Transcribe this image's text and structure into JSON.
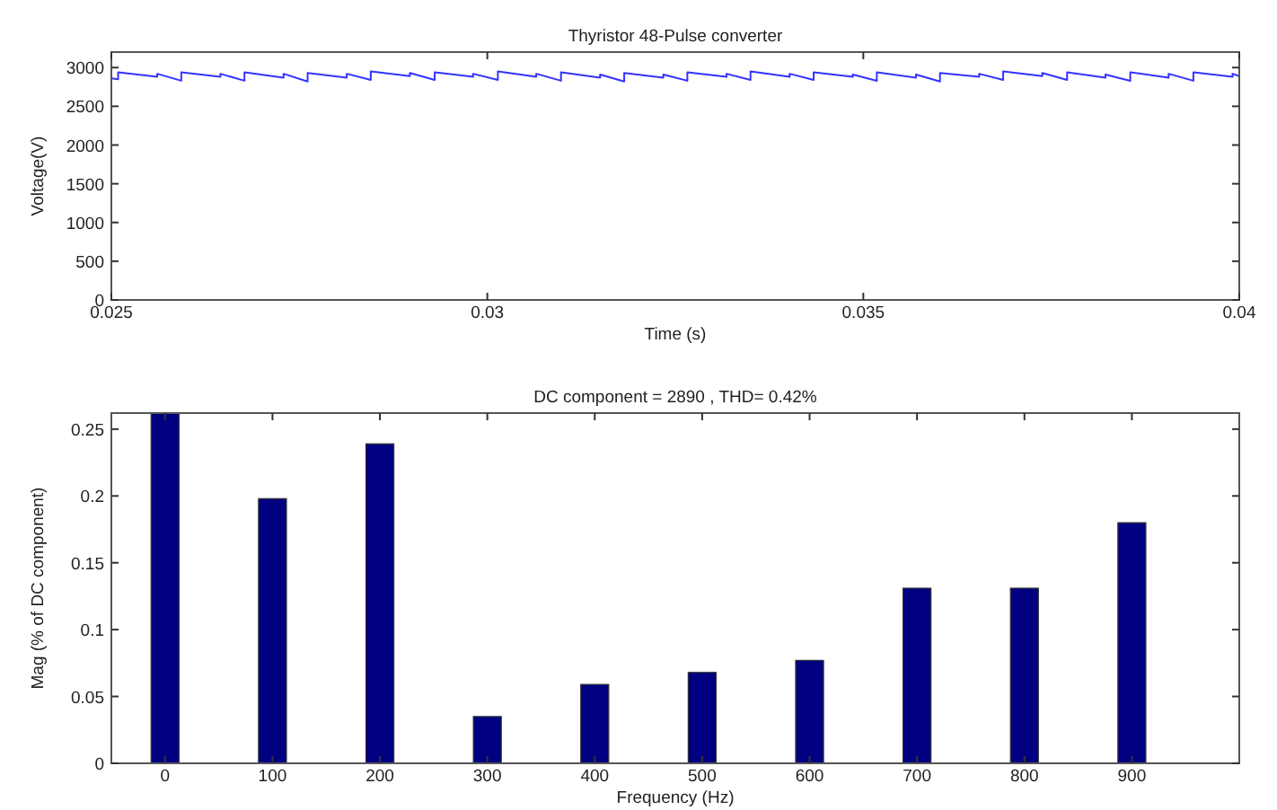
{
  "chart_data": [
    {
      "type": "line",
      "title": "Thyristor 48-Pulse converter",
      "xlabel": "Time (s)",
      "ylabel": "Voltage(V)",
      "xlim": [
        0.025,
        0.04
      ],
      "ylim": [
        0,
        3200
      ],
      "xticks": [
        0.025,
        0.03,
        0.035,
        0.04
      ],
      "yticks": [
        0,
        500,
        1000,
        1500,
        2000,
        2500,
        3000
      ],
      "grid": false,
      "series": [
        {
          "color": "#3333ff",
          "x": [
            0.025,
            0.02509,
            0.02509,
            0.02561,
            0.02561,
            0.02593,
            0.02593,
            0.02645,
            0.02645,
            0.02677,
            0.02677,
            0.02729,
            0.02729,
            0.02761,
            0.02761,
            0.02813,
            0.02813,
            0.02845,
            0.02845,
            0.02897,
            0.02897,
            0.0293,
            0.0293,
            0.02981,
            0.02981,
            0.03014,
            0.03014,
            0.03065,
            0.03065,
            0.03098,
            0.03098,
            0.0315,
            0.0315,
            0.03182,
            0.03182,
            0.03234,
            0.03234,
            0.03266,
            0.03266,
            0.03318,
            0.03318,
            0.0335,
            0.0335,
            0.03402,
            0.03402,
            0.03434,
            0.03434,
            0.03486,
            0.03486,
            0.03518,
            0.03518,
            0.0357,
            0.0357,
            0.03602,
            0.03602,
            0.03654,
            0.03654,
            0.03686,
            0.03686,
            0.03738,
            0.03738,
            0.03771,
            0.03771,
            0.03822,
            0.03822,
            0.03855,
            0.03855,
            0.03906,
            0.03906,
            0.03939,
            0.03939,
            0.03991,
            0.03991,
            0.04
          ],
          "values": [
            2860,
            2850,
            2940,
            2880,
            2920,
            2830,
            2940,
            2880,
            2920,
            2830,
            2940,
            2870,
            2920,
            2820,
            2930,
            2870,
            2920,
            2840,
            2950,
            2890,
            2930,
            2840,
            2940,
            2880,
            2920,
            2840,
            2950,
            2880,
            2920,
            2830,
            2940,
            2870,
            2910,
            2820,
            2930,
            2870,
            2910,
            2830,
            2940,
            2880,
            2920,
            2840,
            2950,
            2880,
            2920,
            2840,
            2940,
            2880,
            2910,
            2830,
            2940,
            2870,
            2910,
            2820,
            2930,
            2880,
            2920,
            2840,
            2950,
            2890,
            2930,
            2840,
            2940,
            2870,
            2910,
            2830,
            2940,
            2870,
            2920,
            2830,
            2940,
            2880,
            2920,
            2890
          ]
        }
      ]
    },
    {
      "type": "bar",
      "title": "DC component = 2890 , THD= 0.42%",
      "xlabel": "Frequency (Hz)",
      "ylabel": "Mag (% of DC component)",
      "xlim": [
        -50,
        1000
      ],
      "ylim": [
        0,
        0.262
      ],
      "xticks": [
        0,
        100,
        200,
        300,
        400,
        500,
        600,
        700,
        800,
        900
      ],
      "yticks": [
        0,
        0.05,
        0.1,
        0.15,
        0.2,
        0.25
      ],
      "grid": false,
      "x": [
        0,
        100,
        200,
        300,
        400,
        500,
        600,
        700,
        800,
        900
      ],
      "series": [
        {
          "color": "#000080",
          "values": [
            0.262,
            0.198,
            0.239,
            0.035,
            0.059,
            0.068,
            0.077,
            0.131,
            0.131,
            0.18
          ]
        }
      ]
    }
  ]
}
